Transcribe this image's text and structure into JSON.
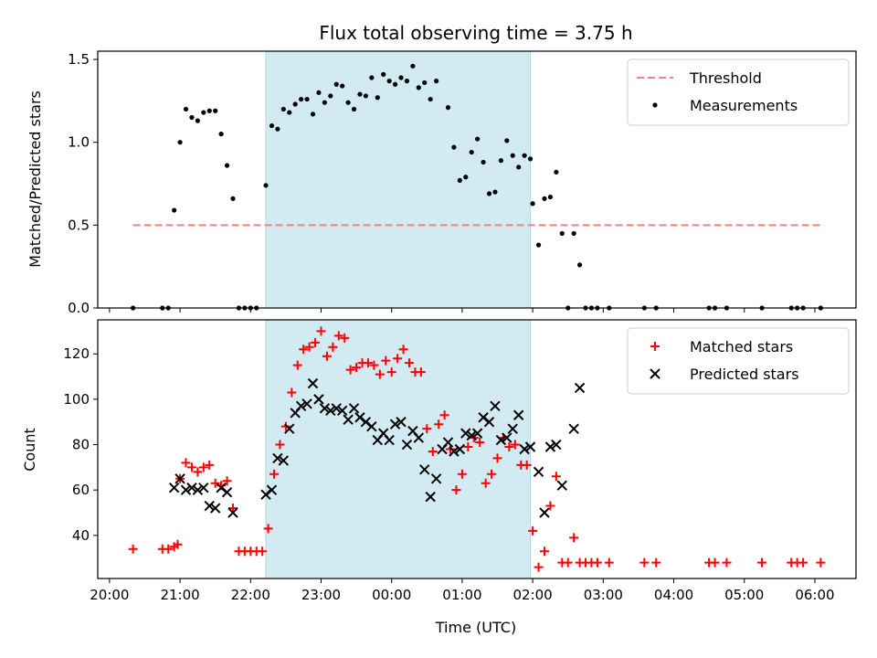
{
  "chart_data": [
    {
      "type": "scatter",
      "title": "Flux total observing time = 3.75 h",
      "ylabel": "Matched/Predicted stars",
      "xlabel": "",
      "ylim": [
        0,
        1.55
      ],
      "xlim": [
        "19:50",
        "06:35"
      ],
      "yticks": [
        "0.0",
        "0.5",
        "1.0",
        "1.5"
      ],
      "grid": false,
      "legend": "top-right",
      "shaded_interval": [
        "22:13",
        "01:58"
      ],
      "shaded_color": "#add8e6",
      "threshold": {
        "name": "Threshold",
        "value": 0.5,
        "x_range": [
          "20:20",
          "06:05"
        ],
        "color": "#ff7f7f",
        "style": "dashed"
      },
      "series": [
        {
          "name": "Measurements",
          "color": "#000000",
          "marker": "dot",
          "points": [
            [
              "20:20",
              0
            ],
            [
              "20:45",
              0
            ],
            [
              "20:50",
              0
            ],
            [
              "20:55",
              0.59
            ],
            [
              "21:00",
              1.0
            ],
            [
              "21:05",
              1.2
            ],
            [
              "21:10",
              1.15
            ],
            [
              "21:15",
              1.13
            ],
            [
              "21:20",
              1.18
            ],
            [
              "21:25",
              1.19
            ],
            [
              "21:30",
              1.19
            ],
            [
              "21:35",
              1.05
            ],
            [
              "21:40",
              0.86
            ],
            [
              "21:45",
              0.66
            ],
            [
              "21:50",
              0
            ],
            [
              "21:55",
              0
            ],
            [
              "22:00",
              0
            ],
            [
              "22:05",
              0
            ],
            [
              "22:13",
              0.74
            ],
            [
              "22:18",
              1.1
            ],
            [
              "22:23",
              1.08
            ],
            [
              "22:28",
              1.2
            ],
            [
              "22:33",
              1.18
            ],
            [
              "22:38",
              1.23
            ],
            [
              "22:43",
              1.26
            ],
            [
              "22:48",
              1.26
            ],
            [
              "22:53",
              1.17
            ],
            [
              "22:58",
              1.3
            ],
            [
              "23:03",
              1.24
            ],
            [
              "23:08",
              1.28
            ],
            [
              "23:13",
              1.35
            ],
            [
              "23:18",
              1.34
            ],
            [
              "23:23",
              1.24
            ],
            [
              "23:28",
              1.2
            ],
            [
              "23:33",
              1.29
            ],
            [
              "23:38",
              1.28
            ],
            [
              "23:43",
              1.39
            ],
            [
              "23:48",
              1.27
            ],
            [
              "23:53",
              1.41
            ],
            [
              "23:58",
              1.37
            ],
            [
              "00:03",
              1.35
            ],
            [
              "00:08",
              1.39
            ],
            [
              "00:13",
              1.37
            ],
            [
              "00:18",
              1.46
            ],
            [
              "00:23",
              1.33
            ],
            [
              "00:28",
              1.36
            ],
            [
              "00:33",
              1.26
            ],
            [
              "00:38",
              1.37
            ],
            [
              "00:48",
              1.21
            ],
            [
              "00:53",
              0.97
            ],
            [
              "00:58",
              0.77
            ],
            [
              "01:03",
              0.79
            ],
            [
              "01:08",
              0.94
            ],
            [
              "01:13",
              1.02
            ],
            [
              "01:18",
              0.88
            ],
            [
              "01:23",
              0.69
            ],
            [
              "01:28",
              0.7
            ],
            [
              "01:33",
              0.89
            ],
            [
              "01:38",
              1.01
            ],
            [
              "01:43",
              0.92
            ],
            [
              "01:48",
              0.85
            ],
            [
              "01:53",
              0.92
            ],
            [
              "01:58",
              0.9
            ],
            [
              "02:00",
              0.63
            ],
            [
              "02:05",
              0.38
            ],
            [
              "02:10",
              0.66
            ],
            [
              "02:15",
              0.67
            ],
            [
              "02:20",
              0.82
            ],
            [
              "02:25",
              0.45
            ],
            [
              "02:35",
              0.45
            ],
            [
              "02:40",
              0.26
            ],
            [
              "02:30",
              0
            ],
            [
              "02:45",
              0
            ],
            [
              "02:50",
              0
            ],
            [
              "02:55",
              0
            ],
            [
              "03:05",
              0
            ],
            [
              "03:35",
              0
            ],
            [
              "03:45",
              0
            ],
            [
              "04:30",
              0
            ],
            [
              "04:35",
              0
            ],
            [
              "04:45",
              0
            ],
            [
              "05:15",
              0
            ],
            [
              "05:40",
              0
            ],
            [
              "05:45",
              0
            ],
            [
              "05:50",
              0
            ],
            [
              "06:05",
              0
            ]
          ]
        }
      ]
    },
    {
      "type": "scatter",
      "title": "",
      "ylabel": "Count",
      "xlabel": "Time (UTC)",
      "ylim": [
        21,
        135
      ],
      "xlim": [
        "19:50",
        "06:35"
      ],
      "yticks": [
        "40",
        "60",
        "80",
        "100",
        "120"
      ],
      "xticks": [
        "20:00",
        "21:00",
        "22:00",
        "23:00",
        "00:00",
        "01:00",
        "02:00",
        "03:00",
        "04:00",
        "05:00",
        "06:00"
      ],
      "grid": false,
      "legend": "top-right",
      "shaded_interval": [
        "22:13",
        "01:58"
      ],
      "shaded_color": "#add8e6",
      "series": [
        {
          "name": "Matched stars",
          "color": "#ff0000",
          "marker": "plus",
          "points": [
            [
              "20:20",
              34
            ],
            [
              "20:45",
              34
            ],
            [
              "20:50",
              34
            ],
            [
              "20:55",
              35
            ],
            [
              "20:58",
              36
            ],
            [
              "21:00",
              65
            ],
            [
              "21:05",
              72
            ],
            [
              "21:10",
              70
            ],
            [
              "21:15",
              68
            ],
            [
              "21:20",
              70
            ],
            [
              "21:25",
              71
            ],
            [
              "21:30",
              63
            ],
            [
              "21:35",
              62
            ],
            [
              "21:40",
              64
            ],
            [
              "21:45",
              52
            ],
            [
              "21:50",
              33
            ],
            [
              "21:55",
              33
            ],
            [
              "22:00",
              33
            ],
            [
              "22:05",
              33
            ],
            [
              "22:10",
              33
            ],
            [
              "22:15",
              43
            ],
            [
              "22:20",
              67
            ],
            [
              "22:25",
              80
            ],
            [
              "22:30",
              88
            ],
            [
              "22:35",
              103
            ],
            [
              "22:40",
              115
            ],
            [
              "22:45",
              122
            ],
            [
              "22:50",
              123
            ],
            [
              "22:55",
              125
            ],
            [
              "23:00",
              130
            ],
            [
              "23:05",
              119
            ],
            [
              "23:10",
              123
            ],
            [
              "23:15",
              128
            ],
            [
              "23:20",
              127
            ],
            [
              "23:25",
              113
            ],
            [
              "23:30",
              114
            ],
            [
              "23:35",
              116
            ],
            [
              "23:40",
              116
            ],
            [
              "23:45",
              115
            ],
            [
              "23:50",
              111
            ],
            [
              "23:55",
              117
            ],
            [
              "00:00",
              112
            ],
            [
              "00:05",
              118
            ],
            [
              "00:10",
              122
            ],
            [
              "00:15",
              116
            ],
            [
              "00:20",
              112
            ],
            [
              "00:25",
              112
            ],
            [
              "00:30",
              87
            ],
            [
              "00:35",
              77
            ],
            [
              "00:40",
              89
            ],
            [
              "00:45",
              93
            ],
            [
              "00:50",
              78
            ],
            [
              "00:55",
              60
            ],
            [
              "01:00",
              67
            ],
            [
              "01:05",
              79
            ],
            [
              "01:10",
              83
            ],
            [
              "01:15",
              81
            ],
            [
              "01:20",
              63
            ],
            [
              "01:25",
              67
            ],
            [
              "01:30",
              74
            ],
            [
              "01:35",
              83
            ],
            [
              "01:40",
              79
            ],
            [
              "01:45",
              80
            ],
            [
              "01:50",
              71
            ],
            [
              "01:55",
              71
            ],
            [
              "02:00",
              42
            ],
            [
              "02:05",
              26
            ],
            [
              "02:10",
              33
            ],
            [
              "02:15",
              53
            ],
            [
              "02:20",
              66
            ],
            [
              "02:25",
              28
            ],
            [
              "02:30",
              28
            ],
            [
              "02:35",
              39
            ],
            [
              "02:40",
              28
            ],
            [
              "02:45",
              28
            ],
            [
              "02:50",
              28
            ],
            [
              "02:55",
              28
            ],
            [
              "03:05",
              28
            ],
            [
              "03:35",
              28
            ],
            [
              "03:45",
              28
            ],
            [
              "04:30",
              28
            ],
            [
              "04:35",
              28
            ],
            [
              "04:45",
              28
            ],
            [
              "05:15",
              28
            ],
            [
              "05:40",
              28
            ],
            [
              "05:45",
              28
            ],
            [
              "05:50",
              28
            ],
            [
              "06:05",
              28
            ]
          ]
        },
        {
          "name": "Predicted stars",
          "color": "#000000",
          "marker": "x",
          "points": [
            [
              "20:55",
              61
            ],
            [
              "21:00",
              65
            ],
            [
              "21:05",
              60
            ],
            [
              "21:10",
              61
            ],
            [
              "21:15",
              60
            ],
            [
              "21:20",
              61
            ],
            [
              "21:25",
              53
            ],
            [
              "21:30",
              52
            ],
            [
              "21:35",
              61
            ],
            [
              "21:40",
              59
            ],
            [
              "21:45",
              50
            ],
            [
              "22:13",
              58
            ],
            [
              "22:18",
              60
            ],
            [
              "22:23",
              74
            ],
            [
              "22:28",
              73
            ],
            [
              "22:33",
              87
            ],
            [
              "22:38",
              94
            ],
            [
              "22:43",
              97
            ],
            [
              "22:48",
              98
            ],
            [
              "22:53",
              107
            ],
            [
              "22:58",
              100
            ],
            [
              "23:03",
              96
            ],
            [
              "23:08",
              95
            ],
            [
              "23:13",
              96
            ],
            [
              "23:18",
              95
            ],
            [
              "23:23",
              91
            ],
            [
              "23:28",
              96
            ],
            [
              "23:33",
              92
            ],
            [
              "23:38",
              90
            ],
            [
              "23:43",
              88
            ],
            [
              "23:48",
              82
            ],
            [
              "23:53",
              85
            ],
            [
              "23:58",
              82
            ],
            [
              "00:03",
              89
            ],
            [
              "00:08",
              90
            ],
            [
              "00:13",
              80
            ],
            [
              "00:18",
              86
            ],
            [
              "00:23",
              83
            ],
            [
              "00:28",
              69
            ],
            [
              "00:33",
              57
            ],
            [
              "00:38",
              65
            ],
            [
              "00:43",
              78
            ],
            [
              "00:48",
              81
            ],
            [
              "00:53",
              77
            ],
            [
              "00:58",
              78
            ],
            [
              "01:03",
              85
            ],
            [
              "01:08",
              84
            ],
            [
              "01:13",
              85
            ],
            [
              "01:18",
              92
            ],
            [
              "01:23",
              90
            ],
            [
              "01:28",
              97
            ],
            [
              "01:33",
              82
            ],
            [
              "01:38",
              83
            ],
            [
              "01:43",
              87
            ],
            [
              "01:48",
              93
            ],
            [
              "01:53",
              78
            ],
            [
              "01:58",
              79
            ],
            [
              "02:05",
              68
            ],
            [
              "02:10",
              50
            ],
            [
              "02:15",
              79
            ],
            [
              "02:20",
              80
            ],
            [
              "02:25",
              62
            ],
            [
              "02:35",
              87
            ],
            [
              "02:40",
              105
            ]
          ]
        }
      ]
    }
  ]
}
